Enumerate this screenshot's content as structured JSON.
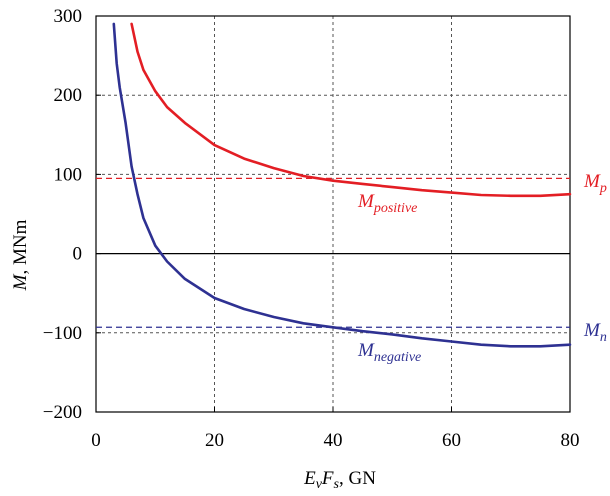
{
  "chart_data": {
    "type": "line",
    "xlabel": {
      "main": "E",
      "sub1": "v",
      "mid": "F",
      "sub2": "s",
      "unit": ", GN"
    },
    "ylabel": {
      "main": "M",
      "unit": ", MNm"
    },
    "xlim": [
      0,
      80
    ],
    "ylim": [
      -200,
      300
    ],
    "xticks": [
      0,
      20,
      40,
      60,
      80
    ],
    "yticks": [
      -200,
      -100,
      0,
      100,
      200,
      300
    ],
    "ytick_labels": [
      "−200",
      "−100",
      "0",
      "100",
      "200",
      "300"
    ],
    "grid": true,
    "series": [
      {
        "label": {
          "main": "M",
          "sub": "positive"
        },
        "color": "#e31e24",
        "points": [
          [
            6,
            290
          ],
          [
            7,
            255
          ],
          [
            8,
            232
          ],
          [
            10,
            205
          ],
          [
            12,
            185
          ],
          [
            15,
            165
          ],
          [
            20,
            137
          ],
          [
            25,
            120
          ],
          [
            30,
            108
          ],
          [
            35,
            98
          ],
          [
            40,
            92
          ],
          [
            45,
            88
          ],
          [
            50,
            84
          ],
          [
            55,
            80
          ],
          [
            60,
            77
          ],
          [
            65,
            74
          ],
          [
            70,
            73
          ],
          [
            75,
            73
          ],
          [
            80,
            75
          ]
        ]
      },
      {
        "label": {
          "main": "M",
          "sub": "negative"
        },
        "color": "#2e3192",
        "points": [
          [
            3,
            290
          ],
          [
            3.5,
            240
          ],
          [
            4,
            210
          ],
          [
            5,
            165
          ],
          [
            6,
            110
          ],
          [
            7,
            75
          ],
          [
            8,
            45
          ],
          [
            10,
            10
          ],
          [
            12,
            -10
          ],
          [
            15,
            -32
          ],
          [
            20,
            -56
          ],
          [
            25,
            -70
          ],
          [
            30,
            -80
          ],
          [
            35,
            -88
          ],
          [
            40,
            -93
          ],
          [
            45,
            -98
          ],
          [
            50,
            -102
          ],
          [
            55,
            -107
          ],
          [
            60,
            -111
          ],
          [
            65,
            -115
          ],
          [
            70,
            -117
          ],
          [
            75,
            -117
          ],
          [
            80,
            -115
          ]
        ]
      }
    ],
    "reference_lines": [
      {
        "y": 95,
        "color": "#e31e24",
        "label_main": "M",
        "label_sub": "p"
      },
      {
        "y": -93,
        "color": "#2e3192",
        "label_main": "M",
        "label_sub": "n"
      }
    ],
    "extra_dashed_y": [
      -100
    ]
  }
}
